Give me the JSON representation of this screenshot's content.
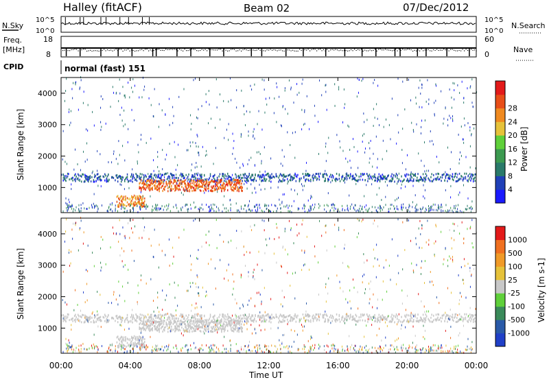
{
  "header": {
    "radar": "Halley (fitACF)",
    "beam": "Beam 02",
    "date": "07/Dec/2012"
  },
  "strips": {
    "nsky_label": "N.Sky",
    "nsearch_label": "N.Search",
    "noise_ticks": [
      "10^5",
      "10^0"
    ],
    "freq_label_1": "Freq.",
    "freq_label_2": "[MHz]",
    "freq_ticks": [
      "18",
      "8"
    ],
    "nave_label": "Nave",
    "nave_ticks": [
      "60",
      "0"
    ],
    "cpid_label": "CPID",
    "cpid_value": "normal (fast) 151"
  },
  "axes": {
    "ylabel": "Slant Range [km]",
    "xlabel": "Time UT",
    "yticks": [
      "1000",
      "2000",
      "3000",
      "4000"
    ],
    "xticks": [
      "00:00",
      "04:00",
      "08:00",
      "12:00",
      "16:00",
      "20:00",
      "00:00"
    ]
  },
  "colorbars": {
    "power": {
      "label": "Power [dB]",
      "ticks": [
        "4",
        "8",
        "12",
        "16",
        "20",
        "24",
        "28"
      ],
      "colors": [
        "#1a1aff",
        "#2040b8",
        "#2a7a6a",
        "#3c9a50",
        "#5fd03a",
        "#e6c23a",
        "#f08a20",
        "#e84e18",
        "#e31a1a"
      ]
    },
    "velocity": {
      "label": "Velocity [m s-1]",
      "ticks": [
        "1000",
        "500",
        "100",
        "25",
        "-25",
        "-100",
        "-500",
        "-1000"
      ],
      "colors": [
        "#2040c8",
        "#2a5aa8",
        "#3a8a5a",
        "#5fd03a",
        "#c8c8c8",
        "#e6c23a",
        "#f09a28",
        "#f07020",
        "#e31a1a"
      ]
    }
  },
  "chart_data": [
    {
      "type": "heatmap",
      "title": "Power [dB]",
      "xlabel": "Time UT",
      "ylabel": "Slant Range [km]",
      "xlim": [
        0,
        24
      ],
      "ylim": [
        200,
        4500
      ],
      "colorbar_range": [
        0,
        30
      ],
      "features": [
        {
          "name": "main band",
          "t_start": 0,
          "t_end": 24,
          "range_km": 1300,
          "power_db": 6
        },
        {
          "name": "strong echo",
          "t_start": 4.5,
          "t_end": 10.5,
          "range_km": 1050,
          "power_db": 24
        },
        {
          "name": "lower echo",
          "t_start": 3.2,
          "t_end": 4.8,
          "range_km": 550,
          "power_db": 22
        }
      ]
    },
    {
      "type": "heatmap",
      "title": "Velocity [m s-1]",
      "xlabel": "Time UT",
      "ylabel": "Slant Range [km]",
      "xlim": [
        0,
        24
      ],
      "ylim": [
        200,
        4500
      ],
      "colorbar_range": [
        -1000,
        1000
      ],
      "features": [
        {
          "name": "ground scatter band",
          "t_start": 0,
          "t_end": 24,
          "range_km": 1300,
          "velocity_ms": 0
        },
        {
          "name": "ground scatter strong",
          "t_start": 4.5,
          "t_end": 10.5,
          "range_km": 1050,
          "velocity_ms": 0
        }
      ]
    }
  ]
}
